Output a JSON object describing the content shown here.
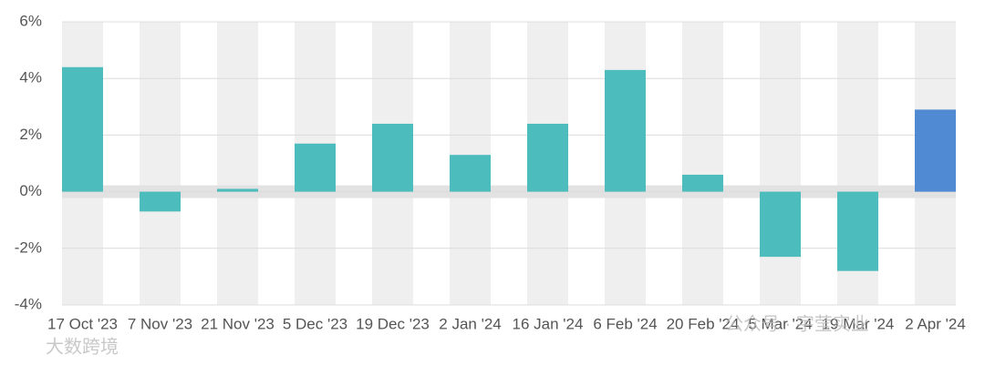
{
  "chart_data": {
    "type": "bar",
    "categories": [
      "17 Oct '23",
      "7 Nov '23",
      "21 Nov '23",
      "5 Dec '23",
      "19 Dec '23",
      "2 Jan '24",
      "16 Jan '24",
      "6 Feb '24",
      "20 Feb '24",
      "5 Mar '24",
      "19 Mar '24",
      "2 Apr '24"
    ],
    "values": [
      4.4,
      -0.7,
      0.1,
      1.7,
      2.4,
      1.3,
      2.4,
      4.3,
      0.6,
      -2.3,
      -2.8,
      2.9
    ],
    "colors": [
      "#4dbcbd",
      "#4dbcbd",
      "#4dbcbd",
      "#4dbcbd",
      "#4dbcbd",
      "#4dbcbd",
      "#4dbcbd",
      "#4dbcbd",
      "#4dbcbd",
      "#4dbcbd",
      "#4dbcbd",
      "#4f8ad3"
    ],
    "ylim": [
      -4,
      6
    ],
    "yticks": [
      {
        "value": -4,
        "label": "-4%"
      },
      {
        "value": -2,
        "label": "-2%"
      },
      {
        "value": 0,
        "label": "0%"
      },
      {
        "value": 2,
        "label": "2%"
      },
      {
        "value": 4,
        "label": "4%"
      },
      {
        "value": 6,
        "label": "6%"
      }
    ],
    "grid": true,
    "watermarks": [
      "大数跨境",
      "公众号 · 宇莹实业"
    ]
  }
}
